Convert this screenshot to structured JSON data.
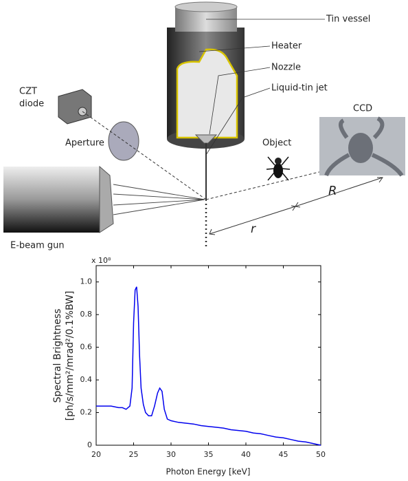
{
  "diagram": {
    "labels": {
      "tin_vessel": "Tin vessel",
      "heater": "Heater",
      "nozzle": "Nozzle",
      "jet": "Liquid-tin jet",
      "czt_diode": [
        "CZT",
        "diode"
      ],
      "aperture": "Aperture",
      "object": "Object",
      "ccd": "CCD",
      "gun": "E-beam gun",
      "r_small": "r",
      "r_large": "R"
    }
  },
  "chart_data": {
    "type": "line",
    "ylabel": [
      "Spectral Brightness",
      "[ph/s/mm²/mrad²/0.1%BW]"
    ],
    "xlabel": "Photon Energy [keV]",
    "multiplier": "x 10⁸",
    "x": [
      20,
      21,
      22,
      23,
      23.5,
      24,
      24.5,
      24.8,
      25,
      25.2,
      25.4,
      25.6,
      25.8,
      26,
      26.3,
      26.6,
      27,
      27.4,
      27.8,
      28.2,
      28.5,
      28.8,
      29.1,
      29.5,
      30,
      31,
      32,
      33,
      34,
      35,
      36,
      37,
      38,
      39,
      40,
      41,
      42,
      43,
      44,
      45,
      46,
      47,
      48,
      49,
      50
    ],
    "values": [
      0.24,
      0.24,
      0.24,
      0.23,
      0.23,
      0.22,
      0.24,
      0.35,
      0.75,
      0.95,
      0.97,
      0.85,
      0.55,
      0.35,
      0.25,
      0.2,
      0.18,
      0.18,
      0.24,
      0.32,
      0.35,
      0.33,
      0.22,
      0.16,
      0.15,
      0.14,
      0.135,
      0.13,
      0.12,
      0.115,
      0.11,
      0.105,
      0.095,
      0.09,
      0.085,
      0.075,
      0.07,
      0.06,
      0.05,
      0.045,
      0.035,
      0.025,
      0.02,
      0.01,
      0
    ],
    "color": "#0000ee",
    "xlim": [
      20,
      50
    ],
    "xticks": [
      20,
      25,
      30,
      35,
      40,
      45,
      50
    ],
    "ylim": [
      0,
      1.1
    ],
    "yticks": [
      0,
      0.2,
      0.4,
      0.6,
      0.8,
      {
        "value": 1,
        "label": "1.0"
      }
    ]
  }
}
